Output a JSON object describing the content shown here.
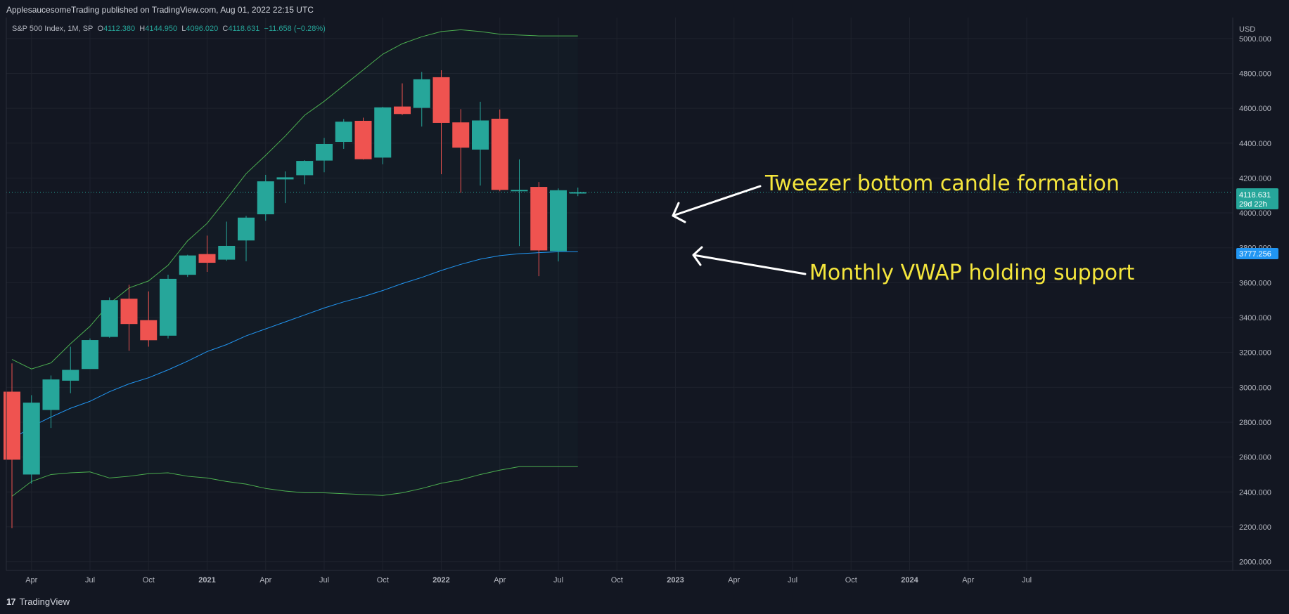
{
  "header": {
    "publisher": "ApplesaucesomeTrading published on TradingView.com, Aug 01, 2022 22:15 UTC"
  },
  "legend": {
    "symbol": "S&P 500 Index, 1M, SP",
    "o_label": "O",
    "o_value": "4112.380",
    "h_label": "H",
    "h_value": "4144.950",
    "l_label": "L",
    "l_value": "4096.020",
    "c_label": "C",
    "c_value": "4118.631",
    "change": "−11.658 (−0.28%)"
  },
  "annotations": {
    "tweezer": "Tweezer bottom candle formation",
    "vwap": "Monthly VWAP holding support"
  },
  "footer": {
    "brand": "TradingView",
    "logo_glyph": "17"
  },
  "price_labels": {
    "last": "4118.631",
    "countdown": "29d 22h",
    "vwap": "3777.256"
  },
  "colors": {
    "bg": "#131722",
    "grid": "#1e222d",
    "up": "#26a69a",
    "down": "#ef5350",
    "band": "#4caf50",
    "vwap": "#2196f3",
    "annotation": "#f5e63c",
    "text": "#b2b5be"
  },
  "chart_data": {
    "type": "candlestick",
    "title": "S&P 500 Index, 1M, SP",
    "currency": "USD",
    "ylim": [
      1950,
      5120
    ],
    "yticks": [
      2000,
      2200,
      2400,
      2600,
      2800,
      3000,
      3200,
      3400,
      3600,
      3800,
      4000,
      4200,
      4400,
      4600,
      4800,
      5000
    ],
    "ytick_labels": [
      "2000.000",
      "2200.000",
      "2400.000",
      "2600.000",
      "2800.000",
      "3000.000",
      "3200.000",
      "3400.000",
      "3600.000",
      "3800.000",
      "4000.000",
      "4200.000",
      "4400.000",
      "4600.000",
      "4800.000",
      "5000.000"
    ],
    "xticks": [
      {
        "t": 1,
        "label": "Apr",
        "bold": false
      },
      {
        "t": 4,
        "label": "Jul",
        "bold": false
      },
      {
        "t": 7,
        "label": "Oct",
        "bold": false
      },
      {
        "t": 10,
        "label": "2021",
        "bold": true
      },
      {
        "t": 13,
        "label": "Apr",
        "bold": false
      },
      {
        "t": 16,
        "label": "Jul",
        "bold": false
      },
      {
        "t": 19,
        "label": "Oct",
        "bold": false
      },
      {
        "t": 22,
        "label": "2022",
        "bold": true
      },
      {
        "t": 25,
        "label": "Apr",
        "bold": false
      },
      {
        "t": 28,
        "label": "Jul",
        "bold": false
      },
      {
        "t": 31,
        "label": "Oct",
        "bold": false
      },
      {
        "t": 34,
        "label": "2023",
        "bold": true
      },
      {
        "t": 37,
        "label": "Apr",
        "bold": false
      },
      {
        "t": 40,
        "label": "Jul",
        "bold": false
      },
      {
        "t": 43,
        "label": "Oct",
        "bold": false
      },
      {
        "t": 46,
        "label": "2024",
        "bold": true
      },
      {
        "t": 49,
        "label": "Apr",
        "bold": false
      },
      {
        "t": 52,
        "label": "Jul",
        "bold": false
      }
    ],
    "candles": [
      {
        "date": "2020-03",
        "o": 2975,
        "h": 3137,
        "l": 2192,
        "c": 2585
      },
      {
        "date": "2020-04",
        "o": 2500,
        "h": 2955,
        "l": 2447,
        "c": 2912
      },
      {
        "date": "2020-05",
        "o": 2870,
        "h": 3068,
        "l": 2767,
        "c": 3045
      },
      {
        "date": "2020-06",
        "o": 3038,
        "h": 3233,
        "l": 2966,
        "c": 3100
      },
      {
        "date": "2020-07",
        "o": 3105,
        "h": 3280,
        "l": 3115,
        "c": 3271
      },
      {
        "date": "2020-08",
        "o": 3289,
        "h": 3515,
        "l": 3284,
        "c": 3500
      },
      {
        "date": "2020-09",
        "o": 3508,
        "h": 3588,
        "l": 3209,
        "c": 3363
      },
      {
        "date": "2020-10",
        "o": 3385,
        "h": 3550,
        "l": 3233,
        "c": 3270
      },
      {
        "date": "2020-11",
        "o": 3296,
        "h": 3646,
        "l": 3280,
        "c": 3622
      },
      {
        "date": "2020-12",
        "o": 3645,
        "h": 3760,
        "l": 3633,
        "c": 3756
      },
      {
        "date": "2021-01",
        "o": 3764,
        "h": 3870,
        "l": 3662,
        "c": 3714
      },
      {
        "date": "2021-02",
        "o": 3732,
        "h": 3950,
        "l": 3725,
        "c": 3811
      },
      {
        "date": "2021-03",
        "o": 3842,
        "h": 3983,
        "l": 3723,
        "c": 3973
      },
      {
        "date": "2021-04",
        "o": 3992,
        "h": 4218,
        "l": 3955,
        "c": 4181
      },
      {
        "date": "2021-05",
        "o": 4192,
        "h": 4238,
        "l": 4056,
        "c": 4204
      },
      {
        "date": "2021-06",
        "o": 4216,
        "h": 4302,
        "l": 4164,
        "c": 4298
      },
      {
        "date": "2021-07",
        "o": 4300,
        "h": 4430,
        "l": 4233,
        "c": 4395
      },
      {
        "date": "2021-08",
        "o": 4407,
        "h": 4538,
        "l": 4367,
        "c": 4523
      },
      {
        "date": "2021-09",
        "o": 4528,
        "h": 4546,
        "l": 4306,
        "c": 4308
      },
      {
        "date": "2021-10",
        "o": 4317,
        "h": 4608,
        "l": 4279,
        "c": 4605
      },
      {
        "date": "2021-11",
        "o": 4610,
        "h": 4743,
        "l": 4561,
        "c": 4567
      },
      {
        "date": "2021-12",
        "o": 4602,
        "h": 4808,
        "l": 4495,
        "c": 4766
      },
      {
        "date": "2022-01",
        "o": 4778,
        "h": 4818,
        "l": 4222,
        "c": 4516
      },
      {
        "date": "2022-02",
        "o": 4519,
        "h": 4595,
        "l": 4115,
        "c": 4374
      },
      {
        "date": "2022-03",
        "o": 4363,
        "h": 4637,
        "l": 4157,
        "c": 4530
      },
      {
        "date": "2022-04",
        "o": 4540,
        "h": 4593,
        "l": 4124,
        "c": 4132
      },
      {
        "date": "2022-05",
        "o": 4130,
        "h": 4307,
        "l": 3810,
        "c": 4132
      },
      {
        "date": "2022-06",
        "o": 4149,
        "h": 4177,
        "l": 3637,
        "c": 3785
      },
      {
        "date": "2022-07",
        "o": 3781,
        "h": 4140,
        "l": 3722,
        "c": 4130
      },
      {
        "date": "2022-08",
        "o": 4112,
        "h": 4145,
        "l": 4096,
        "c": 4119
      }
    ],
    "series": [
      {
        "name": "",
        "style": "vwap",
        "values": [
          2700,
          2775,
          2830,
          2880,
          2920,
          2975,
          3020,
          3055,
          3100,
          3150,
          3205,
          3245,
          3295,
          3335,
          3375,
          3415,
          3455,
          3490,
          3520,
          3555,
          3595,
          3630,
          3670,
          3705,
          3735,
          3755,
          3766,
          3772,
          3777,
          3777
        ]
      },
      {
        "name": "",
        "style": "upper",
        "values": [
          3160,
          3105,
          3140,
          3250,
          3350,
          3480,
          3570,
          3610,
          3700,
          3840,
          3940,
          4080,
          4225,
          4330,
          4440,
          4560,
          4640,
          4730,
          4820,
          4910,
          4970,
          5010,
          5040,
          5050,
          5040,
          5025,
          5020,
          5015,
          5015,
          5015
        ]
      },
      {
        "name": "",
        "style": "lower",
        "values": [
          2375,
          2460,
          2500,
          2510,
          2515,
          2480,
          2490,
          2505,
          2510,
          2490,
          2480,
          2460,
          2445,
          2420,
          2405,
          2395,
          2395,
          2390,
          2385,
          2380,
          2395,
          2420,
          2450,
          2470,
          2500,
          2525,
          2545,
          2545,
          2545,
          2545
        ]
      }
    ]
  }
}
